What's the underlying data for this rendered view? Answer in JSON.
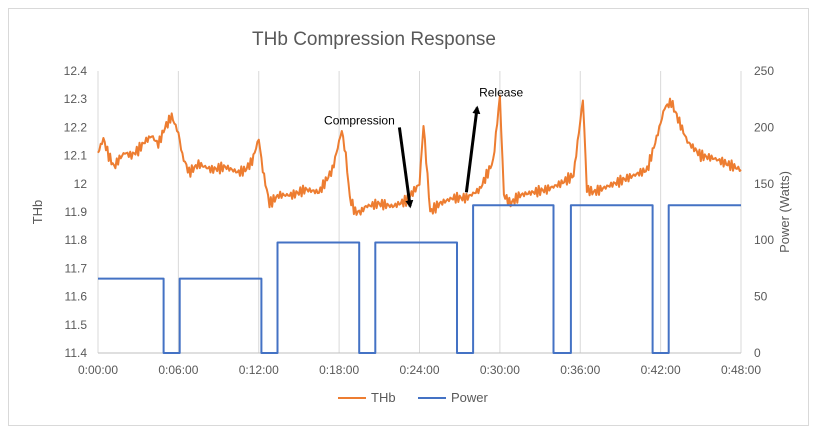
{
  "chart_data": {
    "type": "line",
    "title": "THb Compression Response",
    "ylabel": "THb",
    "y2label": "Power (Watts)",
    "xlabel": "",
    "x_ticks": [
      "0:00:00",
      "0:06:00",
      "0:12:00",
      "0:18:00",
      "0:24:00",
      "0:30:00",
      "0:36:00",
      "0:42:00",
      "0:48:00"
    ],
    "xlim_minutes": [
      0,
      48
    ],
    "ylim": [
      11.4,
      12.4
    ],
    "y_ticks": [
      "11.4",
      "11.5",
      "11.6",
      "11.7",
      "11.8",
      "11.9",
      "12",
      "12.1",
      "12.2",
      "12.3",
      "12.4"
    ],
    "y2lim": [
      0,
      250
    ],
    "y2_ticks": [
      "0",
      "50",
      "100",
      "150",
      "200",
      "250"
    ],
    "grid": "vertical",
    "legend_position": "bottom",
    "colors": {
      "thb": "#ed7d31",
      "power": "#4472c4",
      "grid": "#d9d9d9",
      "text": "#595959"
    },
    "series": [
      {
        "name": "THb",
        "axis": "left",
        "x_minutes": [
          0,
          0.4,
          0.8,
          1.2,
          1.6,
          2,
          2.5,
          3,
          3.5,
          4,
          4.5,
          5,
          5.5,
          6,
          6.3,
          6.8,
          7.5,
          8.5,
          9.5,
          10.5,
          11,
          11.5,
          12,
          12.3,
          12.8,
          13.5,
          14.5,
          15.5,
          16.5,
          17.5,
          18.2,
          18.5,
          18.8,
          19.2,
          19.6,
          20,
          21,
          22,
          23,
          24,
          24.3,
          24.8,
          25.5,
          26.5,
          27.5,
          28.5,
          29.5,
          30,
          30.3,
          30.8,
          31.5,
          32.5,
          33.5,
          34.5,
          35.5,
          36.2,
          36.5,
          37,
          38,
          39,
          40,
          41,
          41.8,
          42.3,
          42.8,
          43.3,
          44,
          45,
          46,
          47,
          48
        ],
        "values": [
          12.11,
          12.16,
          12.1,
          12.06,
          12.09,
          12.11,
          12.1,
          12.12,
          12.15,
          12.17,
          12.14,
          12.2,
          12.24,
          12.18,
          12.1,
          12.04,
          12.07,
          12.05,
          12.06,
          12.04,
          12.05,
          12.08,
          12.16,
          12.05,
          11.93,
          11.96,
          11.96,
          11.98,
          11.97,
          12.05,
          12.19,
          12.1,
          11.95,
          11.9,
          11.9,
          11.92,
          11.93,
          11.92,
          11.94,
          12.0,
          12.21,
          11.9,
          11.93,
          11.95,
          11.95,
          11.98,
          12.08,
          12.31,
          11.96,
          11.93,
          11.96,
          11.97,
          11.98,
          12.0,
          12.03,
          12.3,
          11.98,
          11.97,
          11.99,
          12.01,
          12.03,
          12.05,
          12.18,
          12.27,
          12.29,
          12.23,
          12.15,
          12.1,
          12.09,
          12.07,
          12.05
        ]
      },
      {
        "name": "Power",
        "axis": "right",
        "x_minutes": [
          0,
          4.9,
          4.9,
          6.1,
          6.1,
          12.2,
          12.2,
          13.4,
          13.4,
          19.5,
          19.5,
          20.7,
          20.7,
          26.8,
          26.8,
          28,
          28,
          34,
          34,
          35.3,
          35.3,
          41.4,
          41.4,
          42.6,
          42.6,
          48.3
        ],
        "values": [
          66,
          66,
          0,
          0,
          66,
          66,
          0,
          0,
          98,
          98,
          0,
          0,
          98,
          98,
          0,
          0,
          131,
          131,
          0,
          0,
          131,
          131,
          0,
          0,
          131,
          131
        ]
      }
    ],
    "annotations": [
      {
        "text": "Compression",
        "arrow_from": [
          22.5,
          12.2
        ],
        "arrow_to": [
          23.3,
          11.92
        ]
      },
      {
        "text": "Release",
        "arrow_from": [
          27.5,
          11.97
        ],
        "arrow_to": [
          28.3,
          12.27
        ]
      }
    ]
  }
}
